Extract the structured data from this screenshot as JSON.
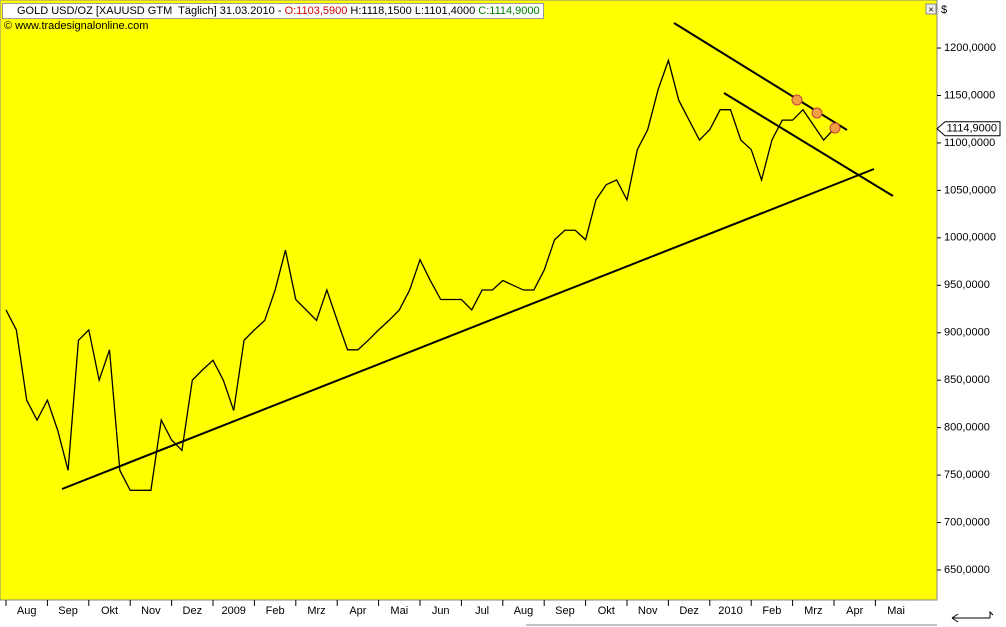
{
  "header": {
    "symbol": "GOLD USD/OZ [XAUUSD GTM  Täglich] 31.03.2010 - ",
    "open": "O:1103,5900",
    "high_low": "H:1118,1500 L:1101,4000",
    "close": "C:1114,9000",
    "copyright": "© www.tradesignalonline.com",
    "currency": "$"
  },
  "chart_data": {
    "type": "line",
    "categories": [
      null,
      null,
      "Aug",
      null,
      null,
      null,
      "Sep",
      null,
      null,
      null,
      "Okt",
      null,
      null,
      null,
      "Nov",
      null,
      null,
      null,
      "Dez",
      null,
      null,
      null,
      "2009",
      null,
      null,
      null,
      "Feb",
      null,
      null,
      null,
      "Mrz",
      null,
      null,
      null,
      "Apr",
      null,
      null,
      null,
      "Mai",
      null,
      null,
      null,
      "Jun",
      null,
      null,
      null,
      "Jul",
      null,
      null,
      null,
      "Aug",
      null,
      null,
      null,
      "Sep",
      null,
      null,
      null,
      "Okt",
      null,
      null,
      null,
      "Nov",
      null,
      null,
      null,
      "Dez",
      null,
      null,
      null,
      "2010",
      null,
      null,
      null,
      "Feb",
      null,
      null,
      null,
      "Mrz",
      null,
      null,
      null,
      "Apr",
      null,
      null,
      null,
      "Mai",
      null
    ],
    "series": [
      {
        "name": "GOLD USD/OZ",
        "color": "#000000",
        "values": [
          924,
          903,
          829,
          808,
          829,
          797,
          755,
          892,
          903,
          850,
          882,
          755,
          734,
          734,
          734,
          808,
          787,
          776,
          850,
          861,
          871,
          850,
          818,
          892,
          903,
          913,
          945,
          987,
          935,
          924,
          913,
          945,
          913,
          882,
          882,
          892,
          903,
          913,
          924,
          945,
          977,
          955,
          935,
          935,
          935,
          924,
          945,
          945,
          955,
          950,
          945,
          945,
          966,
          998,
          1008,
          1008,
          998,
          1040,
          1056,
          1061,
          1040,
          1093,
          1114,
          1156,
          1187,
          1145,
          1124,
          1103,
          1114,
          1135,
          1135,
          1103,
          1093,
          1061,
          1103,
          1124,
          1124,
          1135,
          1119,
          1103,
          1114.9,
          null,
          null,
          null,
          null,
          null,
          null,
          null
        ]
      }
    ],
    "last_label": "1114,9000",
    "ylim": [
      618.4,
      1250.6
    ],
    "yticks": [
      {
        "value": 650,
        "label": "650,0000"
      },
      {
        "value": 700,
        "label": "700,0000"
      },
      {
        "value": 750,
        "label": "750,0000"
      },
      {
        "value": 800,
        "label": "800,0000"
      },
      {
        "value": 850,
        "label": "850,0000"
      },
      {
        "value": 900,
        "label": "900,0000"
      },
      {
        "value": 950,
        "label": "950,0000"
      },
      {
        "value": 1000,
        "label": "1000,0000"
      },
      {
        "value": 1050,
        "label": "1050,0000"
      },
      {
        "value": 1100,
        "label": "1100,0000"
      },
      {
        "value": 1150,
        "label": "1150,0000"
      },
      {
        "value": 1200,
        "label": "1200,0000"
      }
    ],
    "background": "#ffff00"
  }
}
